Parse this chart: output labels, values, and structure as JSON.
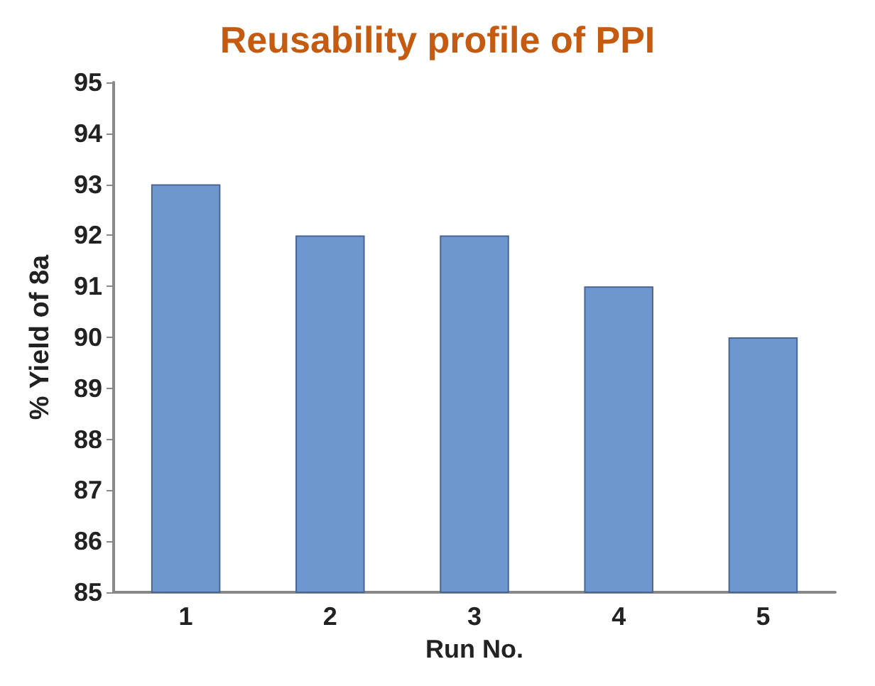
{
  "chart_data": {
    "type": "bar",
    "title": "Reusability profile of PPI",
    "xlabel": "Run No.",
    "ylabel": "% Yield of 8a",
    "categories": [
      "1",
      "2",
      "3",
      "4",
      "5"
    ],
    "values": [
      93,
      92,
      92,
      91,
      90
    ],
    "color": "#6f97cf",
    "ylim": [
      85,
      95
    ],
    "yticks": [
      85,
      86,
      87,
      88,
      89,
      90,
      91,
      92,
      93,
      94,
      95
    ],
    "grid": false
  }
}
